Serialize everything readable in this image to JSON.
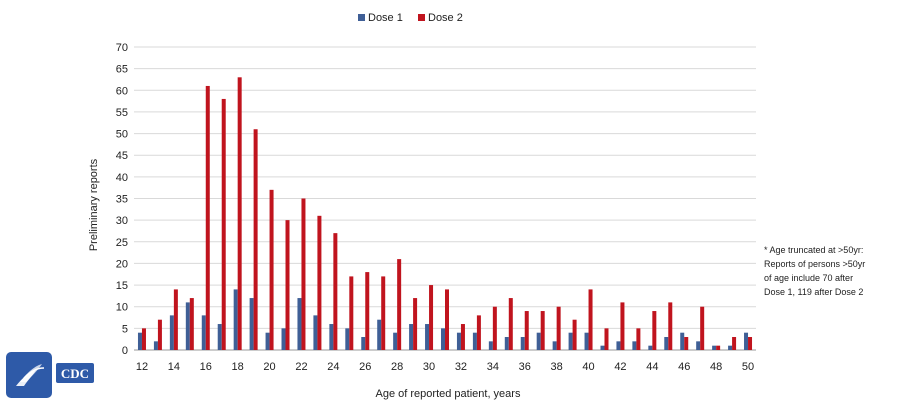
{
  "chart_data": {
    "type": "bar",
    "xlabel": "Age of reported patient, years",
    "ylabel": "Preliminary reports",
    "ylim": [
      0,
      70
    ],
    "yticks": [
      0,
      5,
      10,
      15,
      20,
      25,
      30,
      35,
      40,
      45,
      50,
      55,
      60,
      65,
      70
    ],
    "grid": true,
    "legend_position": "top-center",
    "categories": [
      12,
      13,
      14,
      15,
      16,
      17,
      18,
      19,
      20,
      21,
      22,
      23,
      24,
      25,
      26,
      27,
      28,
      29,
      30,
      31,
      32,
      33,
      34,
      35,
      36,
      37,
      38,
      39,
      40,
      41,
      42,
      43,
      44,
      45,
      46,
      47,
      48,
      49,
      50
    ],
    "xtick_labels": [
      "12",
      "14",
      "16",
      "18",
      "20",
      "22",
      "24",
      "26",
      "28",
      "30",
      "32",
      "34",
      "36",
      "38",
      "40",
      "42",
      "44",
      "46",
      "48",
      "50"
    ],
    "series": [
      {
        "name": "Dose 1",
        "color": "#3f5f96",
        "values": [
          4,
          2,
          8,
          11,
          8,
          6,
          14,
          12,
          4,
          5,
          12,
          8,
          6,
          5,
          3,
          7,
          4,
          6,
          6,
          5,
          4,
          4,
          2,
          3,
          3,
          4,
          2,
          4,
          4,
          1,
          2,
          2,
          1,
          3,
          4,
          2,
          1,
          1,
          4
        ]
      },
      {
        "name": "Dose 2",
        "color": "#c0141e",
        "values": [
          5,
          7,
          14,
          12,
          61,
          58,
          63,
          51,
          37,
          30,
          35,
          31,
          27,
          17,
          18,
          17,
          21,
          12,
          15,
          14,
          6,
          8,
          10,
          12,
          9,
          9,
          10,
          7,
          14,
          5,
          11,
          5,
          9,
          11,
          3,
          10,
          1,
          3,
          3
        ]
      }
    ]
  },
  "note_lines": [
    "* Age truncated at >50yr:",
    "Reports of persons >50yr",
    "of age include 70 after",
    "Dose 1, 119 after Dose 2"
  ],
  "logo": {
    "text": "CDC",
    "color": "#2e5aa8"
  }
}
